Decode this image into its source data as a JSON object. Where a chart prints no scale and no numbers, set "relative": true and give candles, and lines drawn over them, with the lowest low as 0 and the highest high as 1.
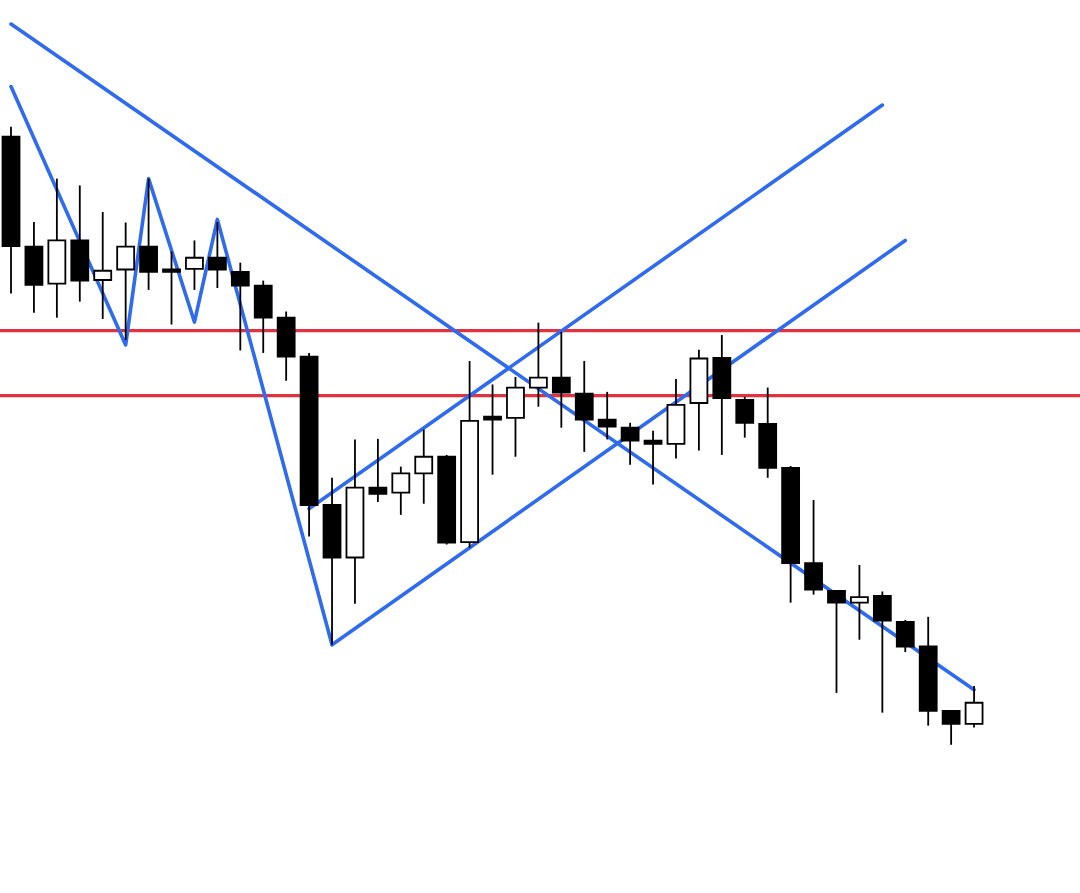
{
  "chart_data": {
    "type": "candlestick",
    "relative": true,
    "categories": [
      null,
      null,
      null,
      null,
      null,
      null,
      null,
      null,
      null,
      null,
      null,
      null,
      null,
      null,
      null,
      null,
      null,
      null,
      null,
      null,
      null,
      null,
      null,
      null,
      null,
      null,
      null,
      null,
      null,
      null,
      null,
      null,
      null,
      null,
      null,
      null,
      null,
      null,
      null,
      null,
      null,
      null,
      null
    ],
    "ohlc": [
      [
        0.984,
        1.0,
        0.73,
        0.807
      ],
      [
        0.806,
        0.846,
        0.699,
        0.744
      ],
      [
        0.746,
        0.916,
        0.691,
        0.816
      ],
      [
        0.816,
        0.905,
        0.717,
        0.751
      ],
      [
        0.752,
        0.862,
        0.689,
        0.767
      ],
      [
        0.769,
        0.845,
        0.655,
        0.806
      ],
      [
        0.806,
        0.916,
        0.736,
        0.765
      ],
      [
        0.769,
        0.798,
        0.68,
        0.765
      ],
      [
        0.77,
        0.816,
        0.736,
        0.788
      ],
      [
        0.788,
        0.846,
        0.739,
        0.769
      ],
      [
        0.765,
        0.78,
        0.638,
        0.743
      ],
      [
        0.743,
        0.751,
        0.634,
        0.691
      ],
      [
        0.691,
        0.701,
        0.589,
        0.628
      ],
      [
        0.628,
        0.634,
        0.337,
        0.388
      ],
      [
        0.388,
        0.432,
        0.162,
        0.303
      ],
      [
        0.303,
        0.494,
        0.228,
        0.416
      ],
      [
        0.416,
        0.495,
        0.393,
        0.406
      ],
      [
        0.408,
        0.45,
        0.372,
        0.439
      ],
      [
        0.439,
        0.51,
        0.39,
        0.466
      ],
      [
        0.466,
        0.469,
        0.324,
        0.327
      ],
      [
        0.328,
        0.621,
        0.319,
        0.524
      ],
      [
        0.531,
        0.583,
        0.437,
        0.526
      ],
      [
        0.529,
        0.595,
        0.466,
        0.578
      ],
      [
        0.578,
        0.683,
        0.547,
        0.594
      ],
      [
        0.594,
        0.668,
        0.513,
        0.57
      ],
      [
        0.568,
        0.621,
        0.474,
        0.526
      ],
      [
        0.526,
        0.571,
        0.494,
        0.515
      ],
      [
        0.513,
        0.521,
        0.453,
        0.492
      ],
      [
        0.492,
        0.508,
        0.421,
        0.487
      ],
      [
        0.487,
        0.592,
        0.463,
        0.55
      ],
      [
        0.553,
        0.639,
        0.476,
        0.625
      ],
      [
        0.626,
        0.663,
        0.469,
        0.561
      ],
      [
        0.558,
        0.563,
        0.497,
        0.521
      ],
      [
        0.519,
        0.578,
        0.432,
        0.448
      ],
      [
        0.448,
        0.451,
        0.23,
        0.294
      ],
      [
        0.294,
        0.396,
        0.243,
        0.251
      ],
      [
        0.249,
        0.249,
        0.084,
        0.23
      ],
      [
        0.23,
        0.291,
        0.17,
        0.239
      ],
      [
        0.241,
        0.248,
        0.052,
        0.201
      ],
      [
        0.199,
        0.202,
        0.15,
        0.159
      ],
      [
        0.159,
        0.207,
        0.031,
        0.055
      ],
      [
        0.055,
        0.055,
        0.0,
        0.034
      ],
      [
        0.034,
        0.095,
        0.028,
        0.068
      ]
    ],
    "series": [
      {
        "type": "line",
        "color": "#2f6bef",
        "values": [
          1.065,
          null,
          null,
          null,
          null,
          0.647,
          0.916,
          null,
          0.684,
          0.85,
          null,
          null,
          null,
          null,
          0.162,
          null,
          null,
          null,
          null,
          null,
          null,
          null,
          null,
          null,
          null,
          null,
          null,
          null,
          null,
          null,
          null,
          null,
          null,
          null,
          null,
          null,
          null,
          null,
          null,
          null,
          null,
          null,
          null
        ]
      },
      {
        "type": "line",
        "color": "#2f6bef",
        "values": [
          null,
          null,
          null,
          null,
          null,
          null,
          null,
          null,
          null,
          null,
          null,
          null,
          null,
          null,
          0.162,
          null,
          null,
          null,
          null,
          null,
          null,
          null,
          null,
          null,
          null,
          null,
          null,
          null,
          null,
          null,
          null,
          null,
          null,
          null,
          null,
          null,
          null,
          null,
          null,
          0.816,
          null,
          null,
          null
        ]
      },
      {
        "type": "line",
        "color": "#2f6bef",
        "values": [
          null,
          null,
          null,
          null,
          null,
          null,
          null,
          null,
          null,
          null,
          null,
          null,
          null,
          0.382,
          null,
          null,
          null,
          null,
          null,
          null,
          null,
          null,
          null,
          null,
          null,
          null,
          null,
          null,
          null,
          null,
          null,
          null,
          null,
          null,
          null,
          null,
          null,
          null,
          1.035,
          null,
          null,
          null,
          null
        ]
      },
      {
        "type": "line",
        "color": "#2f6bef",
        "values": [
          1.166,
          null,
          null,
          null,
          null,
          null,
          null,
          null,
          null,
          null,
          null,
          null,
          null,
          null,
          null,
          null,
          null,
          null,
          null,
          null,
          null,
          null,
          null,
          null,
          null,
          null,
          null,
          null,
          null,
          null,
          null,
          null,
          null,
          null,
          null,
          null,
          null,
          null,
          null,
          null,
          null,
          null,
          0.089
        ]
      }
    ],
    "ref_lines": [
      {
        "axis": "y",
        "value": 0.67,
        "color": "#e0323f"
      },
      {
        "axis": "y",
        "value": 0.565,
        "color": "#e0323f"
      }
    ],
    "legend": false
  }
}
